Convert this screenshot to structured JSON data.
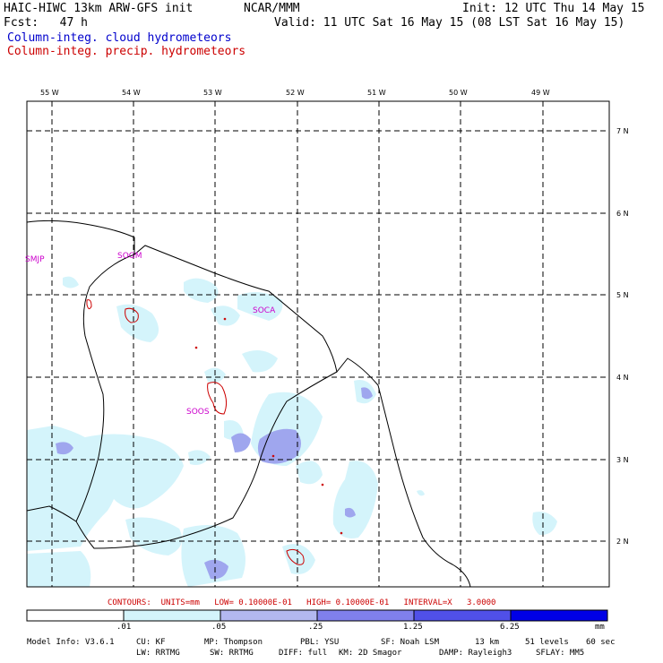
{
  "header": {
    "model": "HAIC-HIWC 13km ARW-GFS init",
    "org": "NCAR/MMM",
    "init": "Init: 12 UTC Thu 14 May 15",
    "fcst": "Fcst:   47 h",
    "valid": "Valid: 11 UTC Sat 16 May 15 (08 LST Sat 16 May 15)",
    "field_cloud": "Column-integ. cloud hydrometeors",
    "field_precip": "Column-integ. precip. hydrometeors",
    "colors": {
      "cloud": "#0000cc",
      "precip": "#cc0000"
    }
  },
  "map": {
    "lon_labels": [
      "55 W",
      "54 W",
      "53 W",
      "52 W",
      "51 W",
      "50 W",
      "49 W"
    ],
    "lat_labels": [
      "7 N",
      "6 N",
      "5 N",
      "4 N",
      "3 N",
      "2 N"
    ],
    "stations": [
      "SMJP",
      "SOGM",
      "SOCA",
      "SOOS"
    ]
  },
  "contours": "CONTOURS:  UNITS=mm   LOW= 0.10000E-01   HIGH= 0.10000E-01   INTERVAL=X   3.0000",
  "colorbar": {
    "labels": [
      ".01",
      ".05",
      ".25",
      "1.25",
      "6.25"
    ],
    "unit": "mm",
    "colors": [
      "#ffffff",
      "#d4f4fb",
      "#b3b8f0",
      "#8080ec",
      "#5050e8",
      "#0000e6"
    ]
  },
  "footer": {
    "line1": [
      "Model Info: V3.6.1",
      "CU: KF",
      "MP: Thompson",
      "PBL: YSU",
      "SF: Noah LSM",
      "13 km",
      "51 levels",
      "60 sec"
    ],
    "line2": [
      "LW: RRTMG",
      "SW: RRTMG",
      "DIFF: full",
      "KM: 2D Smagor",
      "DAMP: Rayleigh3",
      "SFLAY: MM5"
    ]
  }
}
